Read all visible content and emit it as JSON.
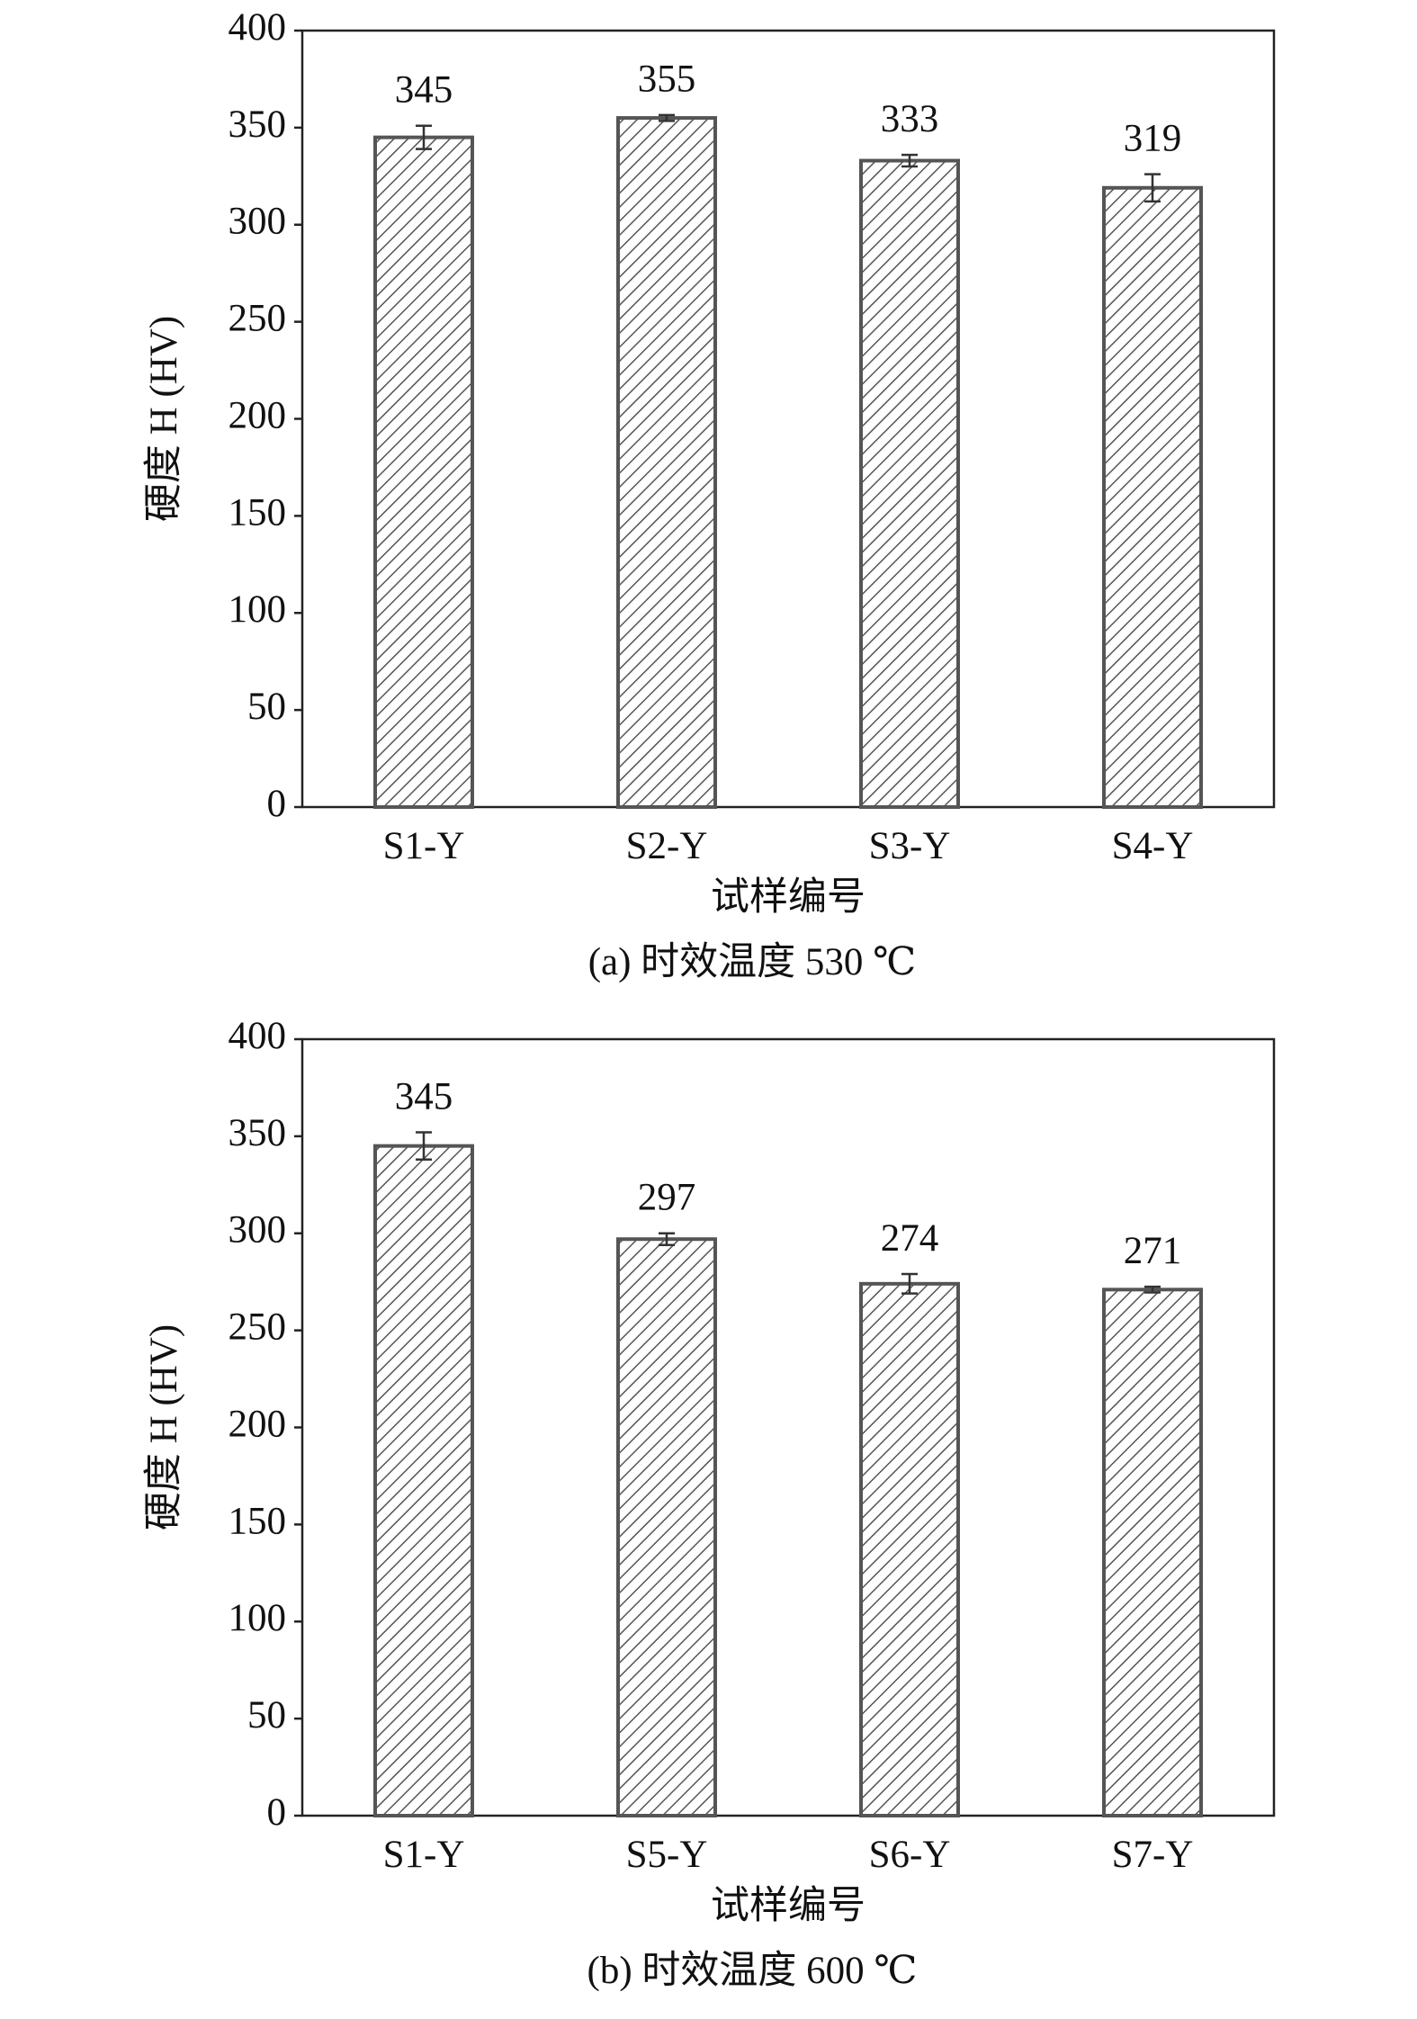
{
  "chart_data": [
    {
      "type": "bar",
      "title": "(a) 时效温度 530 ℃",
      "x_label": "试样编号",
      "y_label": "硬度 H (HV)",
      "categories": [
        "S1-Y",
        "S2-Y",
        "S3-Y",
        "S4-Y"
      ],
      "values": [
        345,
        355,
        333,
        319
      ],
      "errors": [
        6,
        1.5,
        3,
        7
      ],
      "color": "#555555",
      "ylim": [
        0,
        400
      ],
      "yticks": [
        0,
        50,
        100,
        150,
        200,
        250,
        300,
        350,
        400
      ]
    },
    {
      "type": "bar",
      "title": "(b) 时效温度 600 ℃",
      "x_label": "试样编号",
      "y_label": "硬度 H (HV)",
      "categories": [
        "S1-Y",
        "S5-Y",
        "S6-Y",
        "S7-Y"
      ],
      "values": [
        345,
        297,
        274,
        271
      ],
      "errors": [
        7,
        3,
        5,
        1.5
      ],
      "color": "#555555",
      "ylim": [
        0,
        400
      ],
      "yticks": [
        0,
        50,
        100,
        150,
        200,
        250,
        300,
        350,
        400
      ]
    }
  ]
}
